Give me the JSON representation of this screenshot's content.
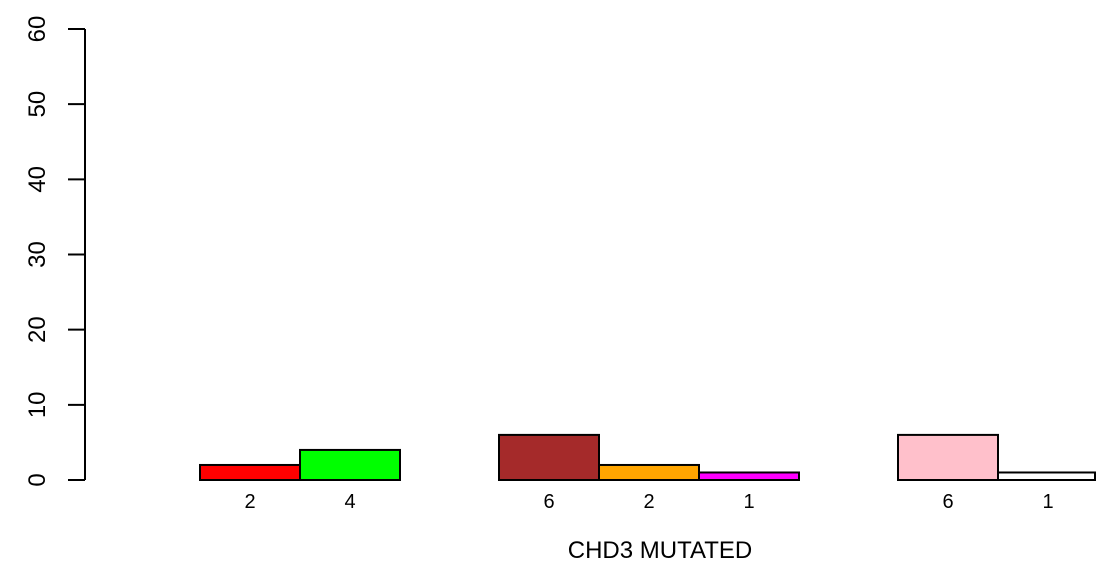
{
  "chart_data": {
    "type": "bar",
    "title": "",
    "xlabel": "CHD3 MUTATED",
    "ylabel": "",
    "ylim": [
      0,
      60
    ],
    "yticks": [
      0,
      10,
      20,
      30,
      40,
      50,
      60
    ],
    "grid": false,
    "legend": "none",
    "groups": [
      {
        "bars": [
          {
            "value": 2,
            "label": "2",
            "color": "#ff0000"
          },
          {
            "value": 4,
            "label": "4",
            "color": "#00ff00"
          }
        ]
      },
      {
        "bars": [
          {
            "value": 6,
            "label": "6",
            "color": "#a52a2a"
          },
          {
            "value": 2,
            "label": "2",
            "color": "#ffa500"
          },
          {
            "value": 1,
            "label": "1",
            "color": "#ff00ff"
          }
        ]
      },
      {
        "bars": [
          {
            "value": 6,
            "label": "6",
            "color": "#ffc0cb"
          },
          {
            "value": 1,
            "label": "1",
            "color": "#ffffff"
          }
        ]
      }
    ]
  }
}
